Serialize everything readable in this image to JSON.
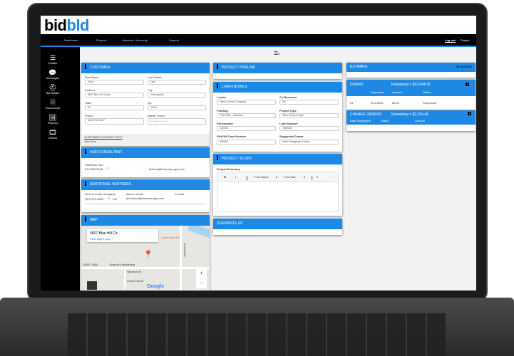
{
  "logo": {
    "part1": "bid",
    "part2": "bld"
  },
  "nav": {
    "items": [
      "Dashboard",
      "Projects",
      "Holsemer University",
      "Support"
    ],
    "logout": "Log out",
    "project": "Project"
  },
  "sidebar": {
    "items": [
      {
        "label": "Details",
        "icon": "list-icon"
      },
      {
        "label": "Messages",
        "icon": "chat-icon"
      },
      {
        "label": "Bid Builder",
        "icon": "hardhat-icon"
      },
      {
        "label": "Documents",
        "icon": "document-icon"
      },
      {
        "label": "Pictures",
        "icon": "image-icon"
      },
      {
        "label": "Videos",
        "icon": "film-icon"
      }
    ]
  },
  "toolbar": {
    "count": "5"
  },
  "customer": {
    "title": "CUSTOMER",
    "fields": [
      {
        "label": "First Name",
        "value": "John"
      },
      {
        "label": "Last Name",
        "value": "Doe"
      },
      {
        "label": "Address",
        "value": "5567 Blue Hill Circle"
      },
      {
        "label": "City",
        "value": "Indianapolis"
      },
      {
        "label": "State",
        "value": "IN"
      },
      {
        "label": "Zip",
        "value": "46224"
      },
      {
        "label": "Phone",
        "value": "(463) 212-0027"
      },
      {
        "label": "Mobile Phone",
        "value": "(___) ___-____"
      }
    ],
    "contact_link": "CUSTOMER CONTACT INFO",
    "contact_name": "John Doe"
  },
  "hud": {
    "title": "HUD CONSULTANT",
    "name": "Holsemer Hud",
    "phone": "317-585-2448",
    "email": "testhud@holsemer-app.com"
  },
  "partners": {
    "title": "ADDITIONAL PARTNERS",
    "company": "Demo Lender Company",
    "phone": "(317)575-5152",
    "ext": "Ext",
    "contact": "Demo Lender",
    "email": "demolend@holsemerapp.com",
    "role": "Lender"
  },
  "map": {
    "title": "MAP",
    "address": "5567 Blue Hill Cir",
    "larger": "View larger map",
    "place": "Burnou's Machining",
    "area": "CREST LAKE",
    "street": "Westmont St",
    "street2": "N Lemont Dr",
    "street3": "N New Park Dr",
    "poi": "Jerry's Drive Bar",
    "brand": "Google",
    "zoom_in": "+",
    "zoom_out": "−"
  },
  "pipeline": {
    "title": "PROJECT PIPELINE"
  },
  "loan": {
    "title": "LOAN DETAILS",
    "fields": [
      {
        "label": "Lender",
        "value": "Demo Lender Company"
      },
      {
        "label": "Co Borrower",
        "value": "No"
      },
      {
        "label": "Funding",
        "value": "FHA 203k - Standard"
      },
      {
        "label": "Project Type",
        "value": "Select Project Type"
      },
      {
        "label": "File Number",
        "value": "123456"
      },
      {
        "label": "Loan Number",
        "value": "7689045"
      },
      {
        "label": "FHA/VA Case Number",
        "value": "456898"
      },
      {
        "label": "Suggested Draws",
        "value": "Select Suggested Draws"
      }
    ]
  },
  "scope": {
    "title": "PROJECT SCOPE",
    "summary_label": "Project Summary",
    "editor": {
      "bold": "B",
      "italic": "I",
      "underline": "U",
      "font_name": "Font Name",
      "font_size": "Font Size",
      "color": "A"
    }
  },
  "sor": {
    "title": "SOR/WRITE UP"
  },
  "estimate": {
    "title": "ESTIMATE",
    "builder": "BID BUILDER"
  },
  "draws": {
    "title": "DRAWS",
    "remaining": "Remaining = $22,644.56",
    "columns": [
      "",
      "Requested",
      "Amount",
      "Status"
    ],
    "rows": [
      [
        "#1",
        "4/11/2023",
        "$0.50",
        "Requested"
      ]
    ]
  },
  "change_orders": {
    "title": "CHANGE ORDERS",
    "remaining": "Remaining = $2,254.46",
    "columns": [
      "Date Requested",
      "Status",
      "Amount"
    ]
  },
  "colors": {
    "brand": "#1e88e5",
    "nav": "#000000"
  }
}
